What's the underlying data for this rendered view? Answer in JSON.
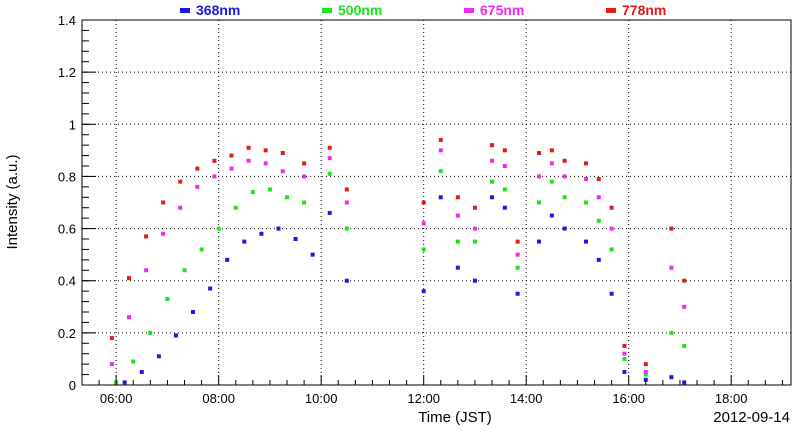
{
  "chart_data": {
    "type": "scatter",
    "title": "",
    "xlabel": "Time (JST)",
    "ylabel": "Intensity (a.u.)",
    "date_label": "2012-09-14",
    "xlim": [
      "05:20",
      "19:10"
    ],
    "ylim": [
      0,
      1.4
    ],
    "x_ticks": [
      "06:00",
      "08:00",
      "10:00",
      "12:00",
      "14:00",
      "16:00",
      "18:00"
    ],
    "y_ticks": [
      0,
      0.2,
      0.4,
      0.6,
      0.8,
      1,
      1.2,
      1.4
    ],
    "y_tick_labels": [
      "0",
      "0.2",
      "0.4",
      "0.6",
      "0.8",
      "1",
      "1.2",
      "1.4"
    ],
    "grid": true,
    "legend_position": "top",
    "series": [
      {
        "name": "368nm",
        "color": "#1a1ae6",
        "points": [
          [
            "06:10",
            0.01
          ],
          [
            "06:30",
            0.05
          ],
          [
            "06:50",
            0.11
          ],
          [
            "07:10",
            0.19
          ],
          [
            "07:30",
            0.28
          ],
          [
            "07:50",
            0.37
          ],
          [
            "08:10",
            0.48
          ],
          [
            "08:30",
            0.55
          ],
          [
            "08:50",
            0.58
          ],
          [
            "09:10",
            0.6
          ],
          [
            "09:30",
            0.56
          ],
          [
            "09:50",
            0.5
          ],
          [
            "10:10",
            0.66
          ],
          [
            "10:30",
            0.4
          ],
          [
            "12:00",
            0.36
          ],
          [
            "12:20",
            0.72
          ],
          [
            "12:40",
            0.45
          ],
          [
            "13:00",
            0.4
          ],
          [
            "13:20",
            0.72
          ],
          [
            "13:35",
            0.68
          ],
          [
            "13:50",
            0.35
          ],
          [
            "14:15",
            0.55
          ],
          [
            "14:30",
            0.65
          ],
          [
            "14:45",
            0.6
          ],
          [
            "15:10",
            0.55
          ],
          [
            "15:25",
            0.48
          ],
          [
            "15:40",
            0.35
          ],
          [
            "15:55",
            0.05
          ],
          [
            "16:20",
            0.02
          ],
          [
            "16:50",
            0.03
          ],
          [
            "17:05",
            0.01
          ]
        ]
      },
      {
        "name": "500nm",
        "color": "#19e619",
        "points": [
          [
            "06:00",
            0.01
          ],
          [
            "06:20",
            0.09
          ],
          [
            "06:40",
            0.2
          ],
          [
            "07:00",
            0.33
          ],
          [
            "07:20",
            0.44
          ],
          [
            "07:40",
            0.52
          ],
          [
            "08:00",
            0.6
          ],
          [
            "08:20",
            0.68
          ],
          [
            "08:40",
            0.74
          ],
          [
            "09:00",
            0.75
          ],
          [
            "09:20",
            0.72
          ],
          [
            "09:40",
            0.7
          ],
          [
            "10:10",
            0.81
          ],
          [
            "10:30",
            0.6
          ],
          [
            "12:00",
            0.52
          ],
          [
            "12:20",
            0.82
          ],
          [
            "12:40",
            0.55
          ],
          [
            "13:00",
            0.55
          ],
          [
            "13:20",
            0.78
          ],
          [
            "13:35",
            0.75
          ],
          [
            "13:50",
            0.45
          ],
          [
            "14:15",
            0.7
          ],
          [
            "14:30",
            0.78
          ],
          [
            "14:45",
            0.72
          ],
          [
            "15:10",
            0.7
          ],
          [
            "15:25",
            0.63
          ],
          [
            "15:40",
            0.52
          ],
          [
            "15:55",
            0.1
          ],
          [
            "16:20",
            0.04
          ],
          [
            "16:50",
            0.2
          ],
          [
            "17:05",
            0.15
          ]
        ]
      },
      {
        "name": "675nm",
        "color": "#f028f0",
        "points": [
          [
            "05:55",
            0.08
          ],
          [
            "06:15",
            0.26
          ],
          [
            "06:35",
            0.44
          ],
          [
            "06:55",
            0.58
          ],
          [
            "07:15",
            0.68
          ],
          [
            "07:35",
            0.76
          ],
          [
            "07:55",
            0.8
          ],
          [
            "08:15",
            0.83
          ],
          [
            "08:35",
            0.86
          ],
          [
            "08:55",
            0.85
          ],
          [
            "09:15",
            0.82
          ],
          [
            "09:40",
            0.8
          ],
          [
            "10:10",
            0.87
          ],
          [
            "10:30",
            0.7
          ],
          [
            "12:00",
            0.62
          ],
          [
            "12:20",
            0.9
          ],
          [
            "12:40",
            0.65
          ],
          [
            "13:00",
            0.6
          ],
          [
            "13:20",
            0.86
          ],
          [
            "13:35",
            0.84
          ],
          [
            "13:50",
            0.5
          ],
          [
            "14:15",
            0.8
          ],
          [
            "14:30",
            0.85
          ],
          [
            "14:45",
            0.8
          ],
          [
            "15:10",
            0.79
          ],
          [
            "15:25",
            0.72
          ],
          [
            "15:40",
            0.6
          ],
          [
            "15:55",
            0.12
          ],
          [
            "16:20",
            0.05
          ],
          [
            "16:50",
            0.45
          ],
          [
            "17:05",
            0.3
          ]
        ]
      },
      {
        "name": "778nm",
        "color": "#e61919",
        "points": [
          [
            "05:55",
            0.18
          ],
          [
            "06:15",
            0.41
          ],
          [
            "06:35",
            0.57
          ],
          [
            "06:55",
            0.7
          ],
          [
            "07:15",
            0.78
          ],
          [
            "07:35",
            0.83
          ],
          [
            "07:55",
            0.86
          ],
          [
            "08:15",
            0.88
          ],
          [
            "08:35",
            0.91
          ],
          [
            "08:55",
            0.9
          ],
          [
            "09:15",
            0.89
          ],
          [
            "09:40",
            0.85
          ],
          [
            "10:10",
            0.91
          ],
          [
            "10:30",
            0.75
          ],
          [
            "12:00",
            0.7
          ],
          [
            "12:20",
            0.94
          ],
          [
            "12:40",
            0.72
          ],
          [
            "13:00",
            0.68
          ],
          [
            "13:20",
            0.92
          ],
          [
            "13:35",
            0.9
          ],
          [
            "13:50",
            0.55
          ],
          [
            "14:15",
            0.89
          ],
          [
            "14:30",
            0.9
          ],
          [
            "14:45",
            0.86
          ],
          [
            "15:10",
            0.85
          ],
          [
            "15:25",
            0.79
          ],
          [
            "15:40",
            0.68
          ],
          [
            "15:55",
            0.15
          ],
          [
            "16:20",
            0.08
          ],
          [
            "16:50",
            0.6
          ],
          [
            "17:05",
            0.4
          ]
        ]
      }
    ]
  }
}
